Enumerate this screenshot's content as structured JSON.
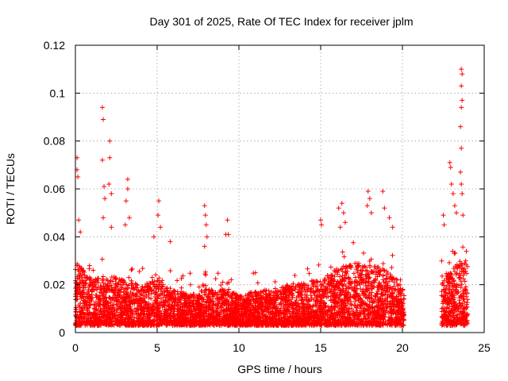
{
  "chart_data": {
    "type": "scatter",
    "title": "Day 301 of 2025, Rate Of TEC Index for receiver jplm",
    "xlabel": "GPS time / hours",
    "ylabel": "ROTI / TECUs",
    "xlim": [
      0,
      25
    ],
    "ylim": [
      0,
      0.12
    ],
    "grid": true,
    "marker": "plus",
    "color": "#ff0000",
    "x_ticks": [
      0,
      5,
      10,
      15,
      20,
      25
    ],
    "x_tick_labels": [
      "0",
      "5",
      "10",
      "15",
      "20",
      "25"
    ],
    "y_ticks": [
      0,
      0.02,
      0.04,
      0.06,
      0.08,
      0.1,
      0.12
    ],
    "y_tick_labels": [
      "0",
      "0.02",
      "0.04",
      "0.06",
      "0.08",
      "0.1",
      "0.12"
    ],
    "data_coverage_hours": [
      [
        0,
        20.1
      ],
      [
        22.4,
        24.0
      ]
    ],
    "outliers": [
      {
        "x": 0.1,
        "y": 0.073
      },
      {
        "x": 0.1,
        "y": 0.068
      },
      {
        "x": 0.15,
        "y": 0.065
      },
      {
        "x": 0.2,
        "y": 0.047
      },
      {
        "x": 0.3,
        "y": 0.042
      },
      {
        "x": 1.65,
        "y": 0.094
      },
      {
        "x": 1.7,
        "y": 0.089
      },
      {
        "x": 1.65,
        "y": 0.072
      },
      {
        "x": 1.75,
        "y": 0.061
      },
      {
        "x": 1.8,
        "y": 0.056
      },
      {
        "x": 1.7,
        "y": 0.048
      },
      {
        "x": 2.1,
        "y": 0.08
      },
      {
        "x": 2.1,
        "y": 0.073
      },
      {
        "x": 2.05,
        "y": 0.062
      },
      {
        "x": 2.2,
        "y": 0.058
      },
      {
        "x": 2.2,
        "y": 0.044
      },
      {
        "x": 3.2,
        "y": 0.064
      },
      {
        "x": 3.2,
        "y": 0.06
      },
      {
        "x": 3.1,
        "y": 0.055
      },
      {
        "x": 3.3,
        "y": 0.048
      },
      {
        "x": 3.05,
        "y": 0.045
      },
      {
        "x": 4.8,
        "y": 0.04
      },
      {
        "x": 5.1,
        "y": 0.055
      },
      {
        "x": 5.05,
        "y": 0.049
      },
      {
        "x": 5.2,
        "y": 0.044
      },
      {
        "x": 5.8,
        "y": 0.038
      },
      {
        "x": 7.9,
        "y": 0.053
      },
      {
        "x": 7.95,
        "y": 0.049
      },
      {
        "x": 8.0,
        "y": 0.045
      },
      {
        "x": 8.05,
        "y": 0.04
      },
      {
        "x": 7.9,
        "y": 0.036
      },
      {
        "x": 9.3,
        "y": 0.047
      },
      {
        "x": 9.2,
        "y": 0.041
      },
      {
        "x": 9.35,
        "y": 0.041
      },
      {
        "x": 15.0,
        "y": 0.047
      },
      {
        "x": 15.05,
        "y": 0.045
      },
      {
        "x": 16.1,
        "y": 0.052
      },
      {
        "x": 16.3,
        "y": 0.054
      },
      {
        "x": 16.4,
        "y": 0.05
      },
      {
        "x": 16.5,
        "y": 0.046
      },
      {
        "x": 16.2,
        "y": 0.044
      },
      {
        "x": 17.9,
        "y": 0.059
      },
      {
        "x": 18.0,
        "y": 0.056
      },
      {
        "x": 17.85,
        "y": 0.053
      },
      {
        "x": 18.1,
        "y": 0.05
      },
      {
        "x": 18.8,
        "y": 0.059
      },
      {
        "x": 18.9,
        "y": 0.052
      },
      {
        "x": 19.2,
        "y": 0.048
      },
      {
        "x": 19.4,
        "y": 0.044
      },
      {
        "x": 22.5,
        "y": 0.049
      },
      {
        "x": 22.55,
        "y": 0.045
      },
      {
        "x": 22.9,
        "y": 0.071
      },
      {
        "x": 22.95,
        "y": 0.069
      },
      {
        "x": 23.0,
        "y": 0.062
      },
      {
        "x": 23.1,
        "y": 0.058
      },
      {
        "x": 23.2,
        "y": 0.053
      },
      {
        "x": 23.3,
        "y": 0.05
      },
      {
        "x": 23.6,
        "y": 0.11
      },
      {
        "x": 23.65,
        "y": 0.108
      },
      {
        "x": 23.6,
        "y": 0.103
      },
      {
        "x": 23.65,
        "y": 0.097
      },
      {
        "x": 23.6,
        "y": 0.094
      },
      {
        "x": 23.55,
        "y": 0.086
      },
      {
        "x": 23.6,
        "y": 0.077
      },
      {
        "x": 23.55,
        "y": 0.067
      },
      {
        "x": 23.6,
        "y": 0.062
      },
      {
        "x": 23.65,
        "y": 0.058
      },
      {
        "x": 23.7,
        "y": 0.049
      }
    ],
    "band": {
      "baseline_y": 0.003,
      "points_per_hour": 240,
      "envelope": [
        {
          "x": 0.0,
          "y": 0.03
        },
        {
          "x": 1.0,
          "y": 0.022
        },
        {
          "x": 2.0,
          "y": 0.024
        },
        {
          "x": 3.0,
          "y": 0.022
        },
        {
          "x": 4.0,
          "y": 0.02
        },
        {
          "x": 5.0,
          "y": 0.022
        },
        {
          "x": 6.0,
          "y": 0.018
        },
        {
          "x": 7.0,
          "y": 0.016
        },
        {
          "x": 8.0,
          "y": 0.018
        },
        {
          "x": 9.0,
          "y": 0.018
        },
        {
          "x": 10.0,
          "y": 0.016
        },
        {
          "x": 11.0,
          "y": 0.017
        },
        {
          "x": 12.0,
          "y": 0.018
        },
        {
          "x": 13.0,
          "y": 0.02
        },
        {
          "x": 14.0,
          "y": 0.021
        },
        {
          "x": 15.0,
          "y": 0.022
        },
        {
          "x": 16.0,
          "y": 0.027
        },
        {
          "x": 17.0,
          "y": 0.029
        },
        {
          "x": 18.0,
          "y": 0.029
        },
        {
          "x": 19.0,
          "y": 0.026
        },
        {
          "x": 20.0,
          "y": 0.02
        },
        {
          "x": 20.1,
          "y": 0.018
        },
        {
          "x": 22.4,
          "y": 0.022
        },
        {
          "x": 23.0,
          "y": 0.026
        },
        {
          "x": 23.5,
          "y": 0.03
        },
        {
          "x": 24.0,
          "y": 0.032
        }
      ]
    }
  }
}
